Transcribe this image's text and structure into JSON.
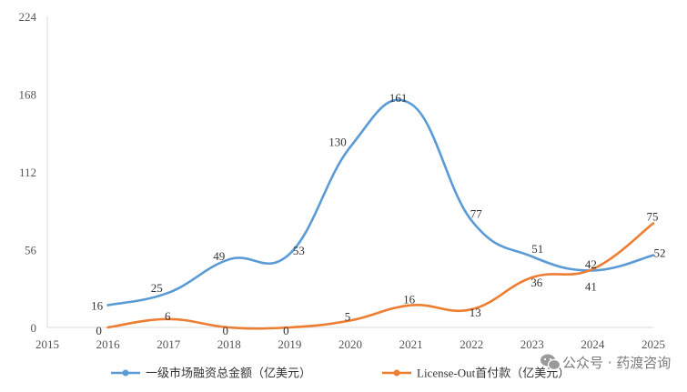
{
  "chart_data": {
    "type": "line",
    "title": "",
    "xlabel": "",
    "ylabel": "",
    "x_ticks": [
      "2015",
      "2016",
      "2017",
      "2018",
      "2019",
      "2020",
      "2021",
      "2022",
      "2023",
      "2024",
      "2025"
    ],
    "y_ticks": [
      "0",
      "56",
      "112",
      "168",
      "224"
    ],
    "ylim": [
      0,
      224
    ],
    "grid": false,
    "legend_position": "bottom",
    "series": [
      {
        "name": "一级市场融资总金额（亿美元）",
        "color": "#5b9bd5",
        "x": [
          "2016",
          "2017",
          "2018",
          "2019",
          "2020",
          "2021",
          "2022",
          "2023",
          "2024",
          "2025"
        ],
        "values": [
          16,
          25,
          49,
          53,
          130,
          161,
          77,
          51,
          41,
          52
        ],
        "labels": [
          "16",
          "25",
          "49",
          "53",
          "130",
          "161",
          "77",
          "51",
          "41",
          "52"
        ]
      },
      {
        "name": "License-Out首付款（亿美元）",
        "color": "#ed7d31",
        "x": [
          "2016",
          "2017",
          "2018",
          "2019",
          "2020",
          "2021",
          "2022",
          "2023",
          "2024",
          "2025"
        ],
        "values": [
          0,
          6,
          0,
          0,
          5,
          16,
          13,
          36,
          42,
          75
        ],
        "labels": [
          "0",
          "6",
          "0",
          "0",
          "5",
          "16",
          "13",
          "36",
          "42",
          "75"
        ]
      }
    ]
  },
  "watermark": {
    "icon": "wechat-icon",
    "text": "公众号 · 药渡咨询"
  }
}
